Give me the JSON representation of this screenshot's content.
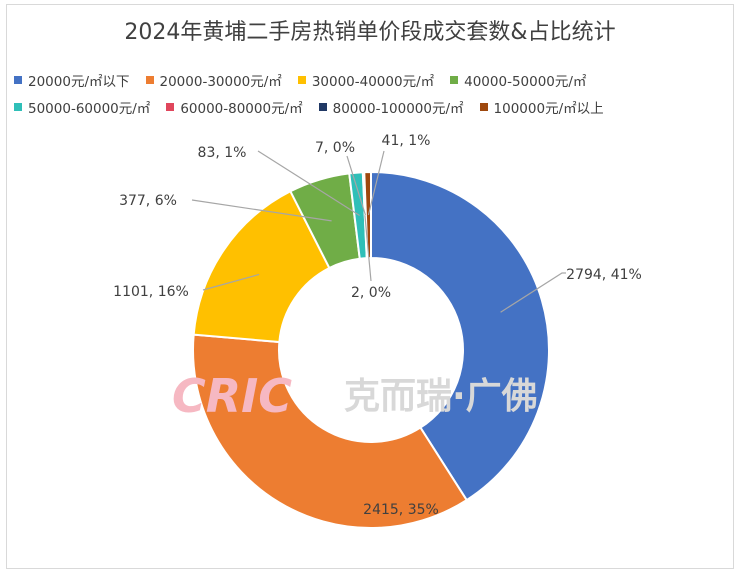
{
  "chart_data": {
    "type": "donut",
    "title": "2024年黄埔二手房热销单价段成交套数&占比统计",
    "series": [
      {
        "name": "20000元/㎡以下",
        "value": 2794,
        "label": "2794, 41%",
        "color": "#4472c4"
      },
      {
        "name": "20000-30000元/㎡",
        "value": 2415,
        "label": "2415, 35%",
        "color": "#ed7d31"
      },
      {
        "name": "30000-40000元/㎡",
        "value": 1101,
        "label": "1101, 16%",
        "color": "#ffc000"
      },
      {
        "name": "40000-50000元/㎡",
        "value": 377,
        "label": "377, 6%",
        "color": "#70ad47"
      },
      {
        "name": "50000-60000元/㎡",
        "value": 83,
        "label": "83, 1%",
        "color": "#2fbfb8"
      },
      {
        "name": "60000-80000元/㎡",
        "value": 2,
        "label": "2, 0%",
        "color": "#e0465c"
      },
      {
        "name": "80000-100000元/㎡",
        "value": 7,
        "label": "7, 0%",
        "color": "#203864"
      },
      {
        "name": "100000元/㎡以上",
        "value": 41,
        "label": "41, 1%",
        "color": "#9e480e"
      }
    ],
    "legend_position": "top"
  },
  "watermark": {
    "logo": "CRIC",
    "text": "克而瑞·广佛"
  }
}
